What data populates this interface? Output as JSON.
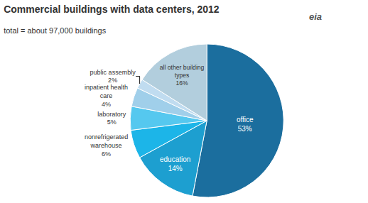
{
  "chart_data": {
    "type": "pie",
    "title": "Commercial buildings with data centers, 2012",
    "subtitle": "total = about 97,000 buildings",
    "categories": [
      "office",
      "education",
      "nonrefrigerated\nwarehouse",
      "laboratory",
      "inpatient health\ncare",
      "public assembly",
      "all other building\ntypes"
    ],
    "values": [
      53,
      14,
      6,
      5,
      4,
      2,
      16
    ],
    "value_labels": [
      "53%",
      "14%",
      "6%",
      "5%",
      "4%",
      "2%",
      "16%"
    ],
    "colors": [
      "#1b6e9e",
      "#1d9fd0",
      "#1cb5e8",
      "#55c8ef",
      "#a0cfea",
      "#c0dcf0",
      "#b2cedd"
    ],
    "annotations": [
      "eia"
    ]
  }
}
